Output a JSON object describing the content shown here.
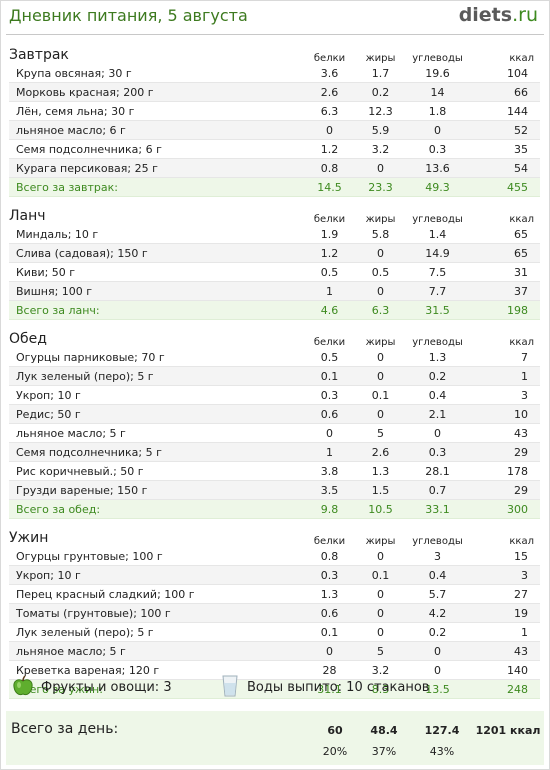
{
  "header": {
    "title": "Дневник питания, 5 августа",
    "logo_name": "diets",
    "logo_tld": ".ru"
  },
  "columns": {
    "protein": "белки",
    "fat": "жиры",
    "carbs": "углеводы",
    "kcal": "ккал"
  },
  "meals": [
    {
      "title": "Завтрак",
      "items": [
        {
          "name": "Крупа овсяная; 30 г",
          "p": "3.6",
          "f": "1.7",
          "c": "19.6",
          "k": "104"
        },
        {
          "name": "Морковь красная; 200 г",
          "p": "2.6",
          "f": "0.2",
          "c": "14",
          "k": "66"
        },
        {
          "name": "Лён, семя льна; 30 г",
          "p": "6.3",
          "f": "12.3",
          "c": "1.8",
          "k": "144"
        },
        {
          "name": "льняное масло; 6 г",
          "p": "0",
          "f": "5.9",
          "c": "0",
          "k": "52"
        },
        {
          "name": "Семя подсолнечника; 6 г",
          "p": "1.2",
          "f": "3.2",
          "c": "0.3",
          "k": "35"
        },
        {
          "name": "Курага персиковая; 25 г",
          "p": "0.8",
          "f": "0",
          "c": "13.6",
          "k": "54"
        }
      ],
      "total": {
        "label": "Всего за завтрак:",
        "p": "14.5",
        "f": "23.3",
        "c": "49.3",
        "k": "455"
      }
    },
    {
      "title": "Ланч",
      "items": [
        {
          "name": "Миндаль; 10 г",
          "p": "1.9",
          "f": "5.8",
          "c": "1.4",
          "k": "65"
        },
        {
          "name": "Слива (садовая); 150 г",
          "p": "1.2",
          "f": "0",
          "c": "14.9",
          "k": "65"
        },
        {
          "name": "Киви; 50 г",
          "p": "0.5",
          "f": "0.5",
          "c": "7.5",
          "k": "31"
        },
        {
          "name": "Вишня; 100 г",
          "p": "1",
          "f": "0",
          "c": "7.7",
          "k": "37"
        }
      ],
      "total": {
        "label": "Всего за ланч:",
        "p": "4.6",
        "f": "6.3",
        "c": "31.5",
        "k": "198"
      }
    },
    {
      "title": "Обед",
      "items": [
        {
          "name": "Огурцы парниковые; 70 г",
          "p": "0.5",
          "f": "0",
          "c": "1.3",
          "k": "7"
        },
        {
          "name": "Лук зеленый (перо); 5 г",
          "p": "0.1",
          "f": "0",
          "c": "0.2",
          "k": "1"
        },
        {
          "name": "Укроп; 10 г",
          "p": "0.3",
          "f": "0.1",
          "c": "0.4",
          "k": "3"
        },
        {
          "name": "Редис; 50 г",
          "p": "0.6",
          "f": "0",
          "c": "2.1",
          "k": "10"
        },
        {
          "name": "льняное масло; 5 г",
          "p": "0",
          "f": "5",
          "c": "0",
          "k": "43"
        },
        {
          "name": "Семя подсолнечника; 5 г",
          "p": "1",
          "f": "2.6",
          "c": "0.3",
          "k": "29"
        },
        {
          "name": "Рис коричневый.; 50 г",
          "p": "3.8",
          "f": "1.3",
          "c": "28.1",
          "k": "178"
        },
        {
          "name": "Грузди вареные; 150 г",
          "p": "3.5",
          "f": "1.5",
          "c": "0.7",
          "k": "29"
        }
      ],
      "total": {
        "label": "Всего за обед:",
        "p": "9.8",
        "f": "10.5",
        "c": "33.1",
        "k": "300"
      }
    },
    {
      "title": "Ужин",
      "items": [
        {
          "name": "Огурцы грунтовые; 100 г",
          "p": "0.8",
          "f": "0",
          "c": "3",
          "k": "15"
        },
        {
          "name": "Укроп; 10 г",
          "p": "0.3",
          "f": "0.1",
          "c": "0.4",
          "k": "3"
        },
        {
          "name": "Перец красный сладкий; 100 г",
          "p": "1.3",
          "f": "0",
          "c": "5.7",
          "k": "27"
        },
        {
          "name": "Томаты (грунтовые); 100 г",
          "p": "0.6",
          "f": "0",
          "c": "4.2",
          "k": "19"
        },
        {
          "name": "Лук зеленый (перо); 5 г",
          "p": "0.1",
          "f": "0",
          "c": "0.2",
          "k": "1"
        },
        {
          "name": "льняное масло; 5 г",
          "p": "0",
          "f": "5",
          "c": "0",
          "k": "43"
        },
        {
          "name": "Креветка вареная; 120 г",
          "p": "28",
          "f": "3.2",
          "c": "0",
          "k": "140"
        }
      ],
      "total": {
        "label": "Всего за ужин:",
        "p": "31.1",
        "f": "8.3",
        "c": "13.5",
        "k": "248"
      }
    }
  ],
  "footer": {
    "fruits_label": "Фрукты и овощи: 3",
    "water_label": "Воды выпито: 10 стаканов"
  },
  "day_total": {
    "label": "Всего за день:",
    "protein": "60",
    "fat": "48.4",
    "carbs": "127.4",
    "kcal": "1201 ккал",
    "protein_pct": "20%",
    "fat_pct": "37%",
    "carbs_pct": "43%"
  },
  "colors": {
    "accent_green": "#3d8a1f",
    "total_bg": "#eef7e8",
    "alt_row_bg": "#f4f4f4"
  },
  "icons": [
    "apple-icon",
    "water-glass-icon"
  ]
}
